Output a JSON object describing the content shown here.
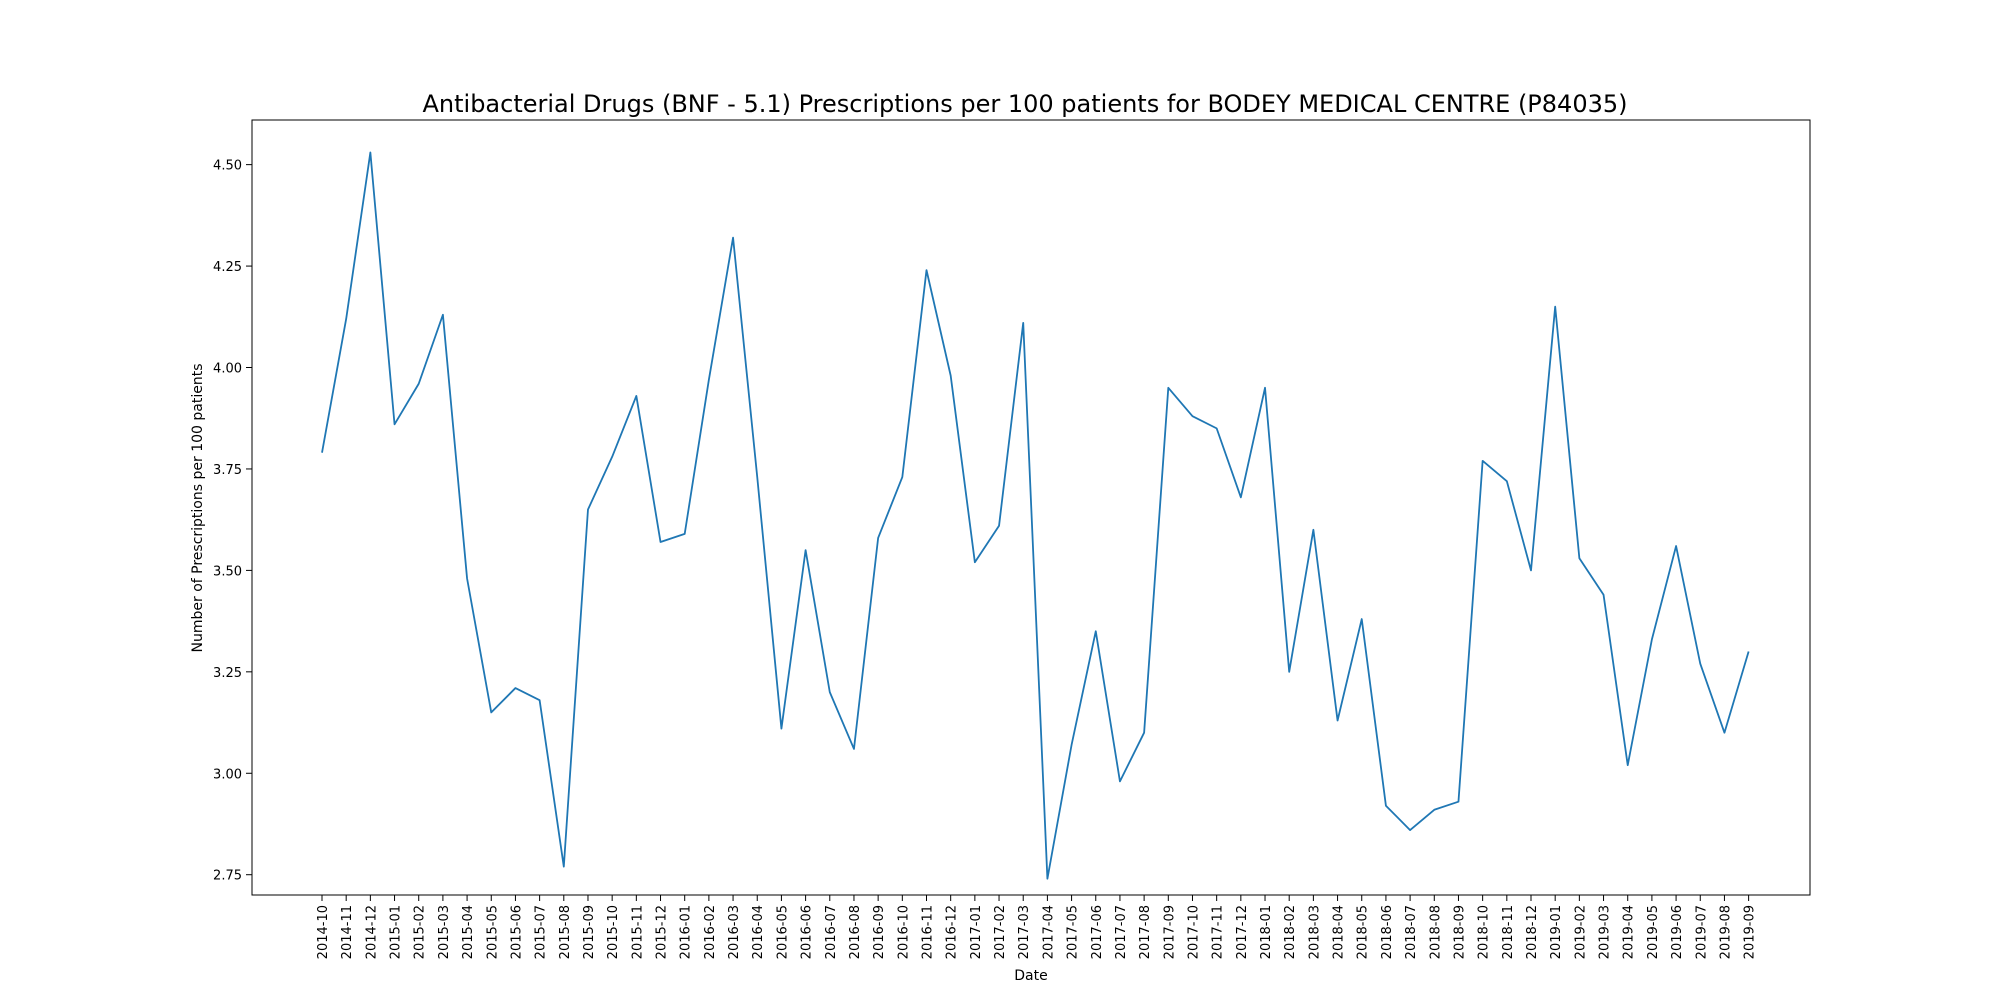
{
  "chart_data": {
    "type": "line",
    "title": "Antibacterial Drugs (BNF - 5.1) Prescriptions per 100 patients for BODEY MEDICAL CENTRE (P84035)",
    "xlabel": "Date",
    "ylabel": "Number of Prescriptions per 100 patients",
    "ylim": [
      2.7,
      4.61
    ],
    "yticks": [
      "2.75",
      "3.00",
      "3.25",
      "3.50",
      "3.75",
      "4.00",
      "4.25",
      "4.50"
    ],
    "grid": false,
    "line_color": "#1f77b4",
    "x": [
      "2014-10",
      "2014-11",
      "2014-12",
      "2015-01",
      "2015-02",
      "2015-03",
      "2015-04",
      "2015-05",
      "2015-06",
      "2015-07",
      "2015-08",
      "2015-09",
      "2015-10",
      "2015-11",
      "2015-12",
      "2016-01",
      "2016-02",
      "2016-03",
      "2016-04",
      "2016-05",
      "2016-06",
      "2016-07",
      "2016-08",
      "2016-09",
      "2016-10",
      "2016-11",
      "2016-12",
      "2017-01",
      "2017-02",
      "2017-03",
      "2017-04",
      "2017-05",
      "2017-06",
      "2017-07",
      "2017-08",
      "2017-09",
      "2017-10",
      "2017-11",
      "2017-12",
      "2018-01",
      "2018-02",
      "2018-03",
      "2018-04",
      "2018-05",
      "2018-06",
      "2018-07",
      "2018-08",
      "2018-09",
      "2018-10",
      "2018-11",
      "2018-12",
      "2019-01",
      "2019-02",
      "2019-03",
      "2019-04",
      "2019-05",
      "2019-06",
      "2019-07",
      "2019-08",
      "2019-09"
    ],
    "series": [
      {
        "values": [
          3.79,
          4.12,
          4.53,
          3.86,
          3.96,
          4.13,
          3.48,
          3.15,
          3.21,
          3.18,
          2.77,
          3.65,
          3.78,
          3.93,
          3.57,
          3.59,
          3.97,
          4.32,
          3.73,
          3.11,
          3.55,
          3.2,
          3.06,
          3.58,
          3.73,
          4.24,
          3.98,
          3.52,
          3.61,
          4.11,
          2.74,
          3.07,
          3.35,
          2.98,
          3.1,
          3.95,
          3.88,
          3.85,
          3.68,
          3.95,
          3.25,
          3.6,
          3.13,
          3.38,
          2.92,
          2.86,
          2.91,
          2.93,
          3.77,
          3.72,
          3.5,
          4.15,
          3.53,
          3.44,
          3.02,
          3.33,
          3.56,
          3.27,
          3.1,
          3.3
        ]
      }
    ]
  }
}
